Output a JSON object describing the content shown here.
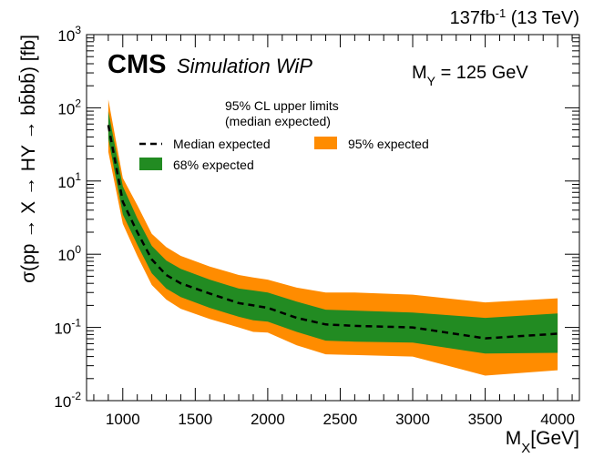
{
  "chart_data": {
    "type": "area",
    "header": {
      "lumi_value": "137fb",
      "lumi_exp": "-1",
      "energy": " (13 TeV)",
      "experiment": "CMS",
      "experiment_extra": "Simulation WiP",
      "mass_label_main": "M",
      "mass_label_sub": "Y",
      "mass_value": " = 125 GeV"
    },
    "legend": {
      "title_line1": "95% CL upper limits",
      "title_line2": "(median expected)",
      "entries": [
        "Median expected",
        "95% expected",
        "68% expected"
      ]
    },
    "xlabel_main": "M",
    "xlabel_sub": "X",
    "xlabel_unit": "[GeV]",
    "ylabel": "σ(pp → X → HY → bb̄bb̄) [fb]",
    "xlim": [
      750,
      4150
    ],
    "ylim": [
      0.01,
      1000
    ],
    "log_y": true,
    "x_ticks": [
      1000,
      1500,
      2000,
      2500,
      3000,
      3500,
      4000
    ],
    "x_tick_labels": [
      "1000",
      "1500",
      "2000",
      "2500",
      "3000",
      "3500",
      "4000"
    ],
    "y_tick_labels": [
      {
        "base": "10",
        "exp": "-2"
      },
      {
        "base": "10",
        "exp": "-1"
      },
      {
        "base": "10",
        "exp": "0"
      },
      {
        "base": "10",
        "exp": "1"
      },
      {
        "base": "10",
        "exp": "2"
      },
      {
        "base": "10",
        "exp": "3"
      }
    ],
    "x": [
      900,
      1000,
      1100,
      1200,
      1300,
      1400,
      1600,
      1800,
      1900,
      2000,
      2200,
      2400,
      2600,
      3000,
      3500,
      4000
    ],
    "series": [
      {
        "name": "Median expected",
        "values": [
          58,
          5.2,
          2.0,
          0.85,
          0.52,
          0.4,
          0.29,
          0.215,
          0.2,
          0.185,
          0.135,
          0.11,
          0.105,
          0.1,
          0.071,
          0.082
        ]
      },
      {
        "name": "68% expected",
        "low": [
          38,
          3.5,
          1.35,
          0.55,
          0.34,
          0.26,
          0.185,
          0.14,
          0.125,
          0.12,
          0.087,
          0.066,
          0.064,
          0.062,
          0.044,
          0.045
        ],
        "high": [
          90,
          8.5,
          3.1,
          1.3,
          0.82,
          0.63,
          0.45,
          0.34,
          0.32,
          0.3,
          0.225,
          0.175,
          0.17,
          0.16,
          0.135,
          0.155
        ]
      },
      {
        "name": "95% expected",
        "low": [
          25,
          2.6,
          0.95,
          0.38,
          0.24,
          0.18,
          0.13,
          0.1,
          0.087,
          0.085,
          0.057,
          0.043,
          0.042,
          0.04,
          0.022,
          0.026
        ],
        "high": [
          130,
          11,
          4.7,
          1.9,
          1.25,
          0.95,
          0.68,
          0.52,
          0.48,
          0.45,
          0.35,
          0.3,
          0.3,
          0.28,
          0.22,
          0.25
        ]
      }
    ],
    "colors": {
      "band95": "#ff8c00",
      "band68": "#228b22",
      "median": "#000000"
    }
  }
}
